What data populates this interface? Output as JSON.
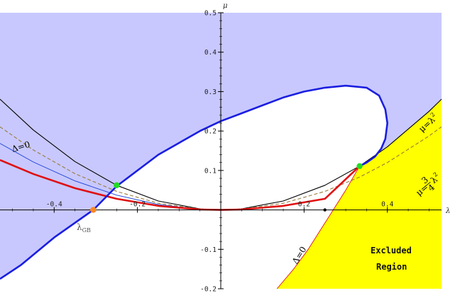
{
  "chart_data": {
    "type": "line",
    "xlabel": "λ",
    "ylabel": "μ",
    "xlim": [
      -0.53,
      0.53
    ],
    "ylim": [
      -0.2,
      0.5
    ],
    "x_ticks": [
      -0.4,
      -0.2,
      0.2,
      0.4
    ],
    "y_ticks": [
      -0.2,
      -0.1,
      0.1,
      0.2,
      0.3,
      0.4,
      0.5
    ],
    "x_tick_labels": [
      "-0.4",
      "-0.2",
      "0.2",
      "0.4"
    ],
    "y_tick_labels": [
      "-0.2",
      "-0.1",
      "0.1",
      "0.2",
      "0.3",
      "0.4",
      "0.5"
    ],
    "series": [
      {
        "label_parts": [
          "μ=λ",
          "2"
        ],
        "color": "#000000",
        "style": "solid",
        "x": [
          -0.53,
          -0.45,
          -0.35,
          -0.25,
          -0.15,
          -0.05,
          0,
          0.05,
          0.15,
          0.25,
          0.3333,
          0.4,
          0.5,
          0.53
        ],
        "y": [
          0.2809,
          0.2025,
          0.1225,
          0.0625,
          0.0225,
          0.0025,
          0,
          0.0025,
          0.0225,
          0.0625,
          0.1111,
          0.16,
          0.25,
          0.2809
        ]
      },
      {
        "label_parts": [
          "μ=",
          "3",
          "4",
          "λ",
          "2"
        ],
        "color": "#9a7b3a",
        "style": "dashed",
        "x": [
          -0.53,
          -0.45,
          -0.35,
          -0.25,
          -0.15,
          -0.05,
          0,
          0.05,
          0.15,
          0.25,
          0.3333,
          0.4,
          0.5,
          0.53
        ],
        "y": [
          0.2107,
          0.1519,
          0.0919,
          0.0469,
          0.0169,
          0.0019,
          0,
          0.0019,
          0.0169,
          0.0469,
          0.0833,
          0.12,
          0.1875,
          0.2107
        ]
      },
      {
        "label": "Δ=0",
        "color": "#1a3fd6",
        "style": "thin",
        "x": [
          -0.53,
          -0.45,
          -0.35,
          -0.25,
          -0.15,
          -0.05,
          0
        ],
        "y": [
          0.1686,
          0.1215,
          0.0735,
          0.0375,
          0.0135,
          0.0015,
          0
        ]
      },
      {
        "color": "#e01010",
        "style": "thick",
        "x": [
          -0.53,
          -0.45,
          -0.35,
          -0.25,
          -0.15,
          -0.05,
          0,
          0.05,
          0.15,
          0.25,
          0.3333
        ],
        "y": [
          0.1264,
          0.0911,
          0.0551,
          0.0281,
          0.0101,
          0.0011,
          0,
          0.0011,
          0.0101,
          0.0281,
          0.1111
        ]
      },
      {
        "color": "#1a1ee0",
        "style": "thick",
        "x": [
          -0.53,
          -0.48,
          -0.4,
          -0.3061,
          -0.25,
          -0.15,
          -0.05,
          0,
          0.05,
          0.1,
          0.15,
          0.2,
          0.25,
          0.3,
          0.35,
          0.38,
          0.395,
          0.4,
          0.395,
          0.385,
          0.37,
          0.35,
          0.3333
        ],
        "y": [
          -0.175,
          -0.14,
          -0.07,
          0,
          0.06,
          0.14,
          0.2,
          0.225,
          0.245,
          0.265,
          0.285,
          0.3,
          0.31,
          0.315,
          0.31,
          0.29,
          0.255,
          0.22,
          0.18,
          0.155,
          0.135,
          0.12,
          0.1111
        ]
      },
      {
        "label": "Δ=0",
        "color": "#e01010",
        "style": "thin",
        "x": [
          0.135,
          0.175,
          0.21,
          0.24,
          0.27,
          0.3,
          0.3333
        ],
        "y": [
          -0.2,
          -0.15,
          -0.1,
          -0.05,
          0,
          0.05,
          0.1111
        ]
      }
    ],
    "points": [
      {
        "name": "green-left",
        "x": -0.25,
        "y": 0.0625,
        "color": "#22dd22"
      },
      {
        "name": "green-right",
        "x": 0.3333,
        "y": 0.1111,
        "color": "#22dd22"
      },
      {
        "name": "lambda-gb",
        "x": -0.3061,
        "y": 0,
        "color": "#ff8822"
      },
      {
        "name": "black-dot",
        "x": 0.25,
        "y": 0,
        "color": "#000000"
      }
    ],
    "regions": [
      {
        "name": "allowed-region",
        "color": "#c8c8ff"
      },
      {
        "name": "excluded-region",
        "label_lines": [
          "Excluded",
          "Region"
        ],
        "color": "#ffff00"
      }
    ],
    "annotations": {
      "lambda_gb": [
        "λ",
        "GB"
      ]
    }
  }
}
